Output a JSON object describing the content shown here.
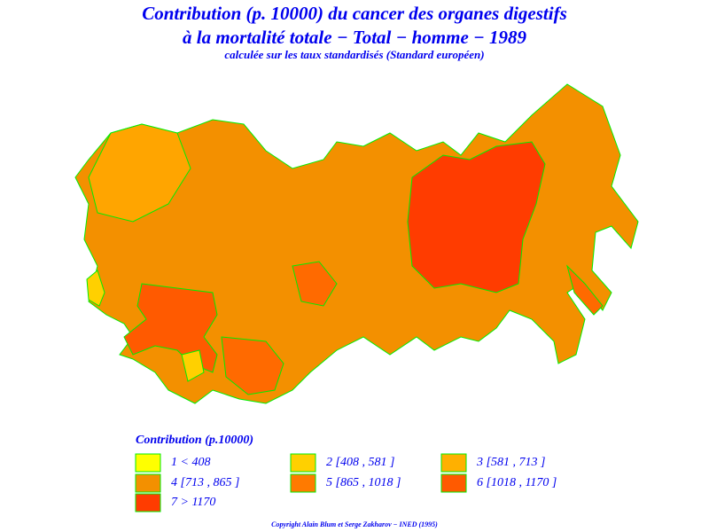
{
  "title": {
    "line1": "Contribution (p. 10000) du cancer des organes digestifs",
    "line2": "à la mortalité totale − Total − homme − 1989",
    "subtitle": "calculée sur les taux standardisés (Standard européen)"
  },
  "legend": {
    "title": "Contribution (p.10000)",
    "items": [
      {
        "label": "1  <  408",
        "color": "#ffff00"
      },
      {
        "label": "2  [408  ,  581  ]",
        "color": "#ffd000"
      },
      {
        "label": "3  [581  ,  713  ]",
        "color": "#ffb000"
      },
      {
        "label": "4  [713  ,  865  ]",
        "color": "#f39000"
      },
      {
        "label": "5  [865  ,  1018  ]",
        "color": "#ff7a00"
      },
      {
        "label": "6  [1018  ,  1170  ]",
        "color": "#ff5a00"
      },
      {
        "label": "7  >  1170",
        "color": "#ff3c00"
      }
    ]
  },
  "footer": {
    "copyright": "Copyright Alain Blum et Serge Zakharov − INED (1995)"
  }
}
